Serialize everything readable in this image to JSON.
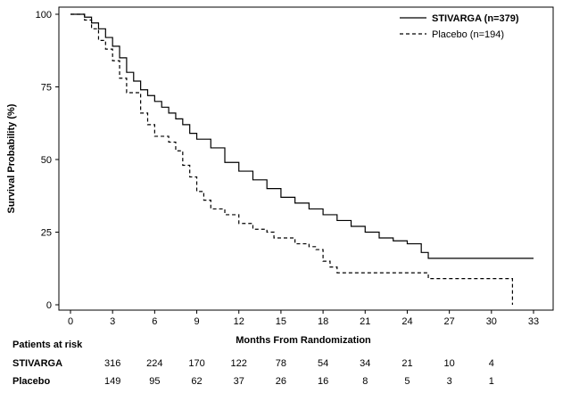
{
  "chart_data": {
    "type": "line",
    "title": "",
    "xlabel": "Months From Randomization",
    "ylabel": "Survival Probability (%)",
    "xlim": [
      0,
      33
    ],
    "ylim": [
      0,
      100
    ],
    "x_ticks": [
      0,
      3,
      6,
      9,
      12,
      15,
      18,
      21,
      24,
      27,
      30,
      33
    ],
    "y_ticks": [
      0,
      25,
      50,
      75,
      100
    ],
    "grid": false,
    "legend_position": "top-right",
    "series": [
      {
        "name": "STIVARGA (n=379)",
        "style": "solid",
        "color": "#000000",
        "points": [
          [
            0,
            100
          ],
          [
            0.5,
            100
          ],
          [
            1,
            99
          ],
          [
            1.5,
            97
          ],
          [
            2,
            95
          ],
          [
            2.5,
            92
          ],
          [
            3,
            89
          ],
          [
            3.5,
            85
          ],
          [
            4,
            80
          ],
          [
            4.5,
            77
          ],
          [
            5,
            74
          ],
          [
            5.5,
            72
          ],
          [
            6,
            70
          ],
          [
            6.5,
            68
          ],
          [
            7,
            66
          ],
          [
            7.5,
            64
          ],
          [
            8,
            62
          ],
          [
            8.5,
            59
          ],
          [
            9,
            57
          ],
          [
            10,
            54
          ],
          [
            11,
            49
          ],
          [
            12,
            46
          ],
          [
            13,
            43
          ],
          [
            14,
            40
          ],
          [
            15,
            37
          ],
          [
            16,
            35
          ],
          [
            17,
            33
          ],
          [
            18,
            31
          ],
          [
            19,
            29
          ],
          [
            20,
            27
          ],
          [
            21,
            25
          ],
          [
            22,
            23
          ],
          [
            23,
            22
          ],
          [
            24,
            21
          ],
          [
            25,
            18
          ],
          [
            25.5,
            16
          ],
          [
            33,
            16
          ]
        ]
      },
      {
        "name": "Placebo (n=194)",
        "style": "dashed",
        "color": "#000000",
        "points": [
          [
            0,
            100
          ],
          [
            0.5,
            100
          ],
          [
            1,
            98
          ],
          [
            1.5,
            95
          ],
          [
            2,
            91
          ],
          [
            2.5,
            88
          ],
          [
            3,
            84
          ],
          [
            3.5,
            78
          ],
          [
            4,
            73
          ],
          [
            5,
            66
          ],
          [
            5.5,
            62
          ],
          [
            6,
            58
          ],
          [
            7,
            56
          ],
          [
            7.5,
            53
          ],
          [
            8,
            48
          ],
          [
            8.5,
            44
          ],
          [
            9,
            39
          ],
          [
            9.5,
            36
          ],
          [
            10,
            33
          ],
          [
            11,
            31
          ],
          [
            12,
            28
          ],
          [
            13,
            26
          ],
          [
            14,
            25
          ],
          [
            14.5,
            23
          ],
          [
            16,
            21
          ],
          [
            17,
            20
          ],
          [
            17.5,
            19
          ],
          [
            18,
            15
          ],
          [
            18.5,
            13
          ],
          [
            19,
            11
          ],
          [
            25.5,
            9
          ],
          [
            31.5,
            9
          ],
          [
            31.5,
            0
          ]
        ]
      }
    ],
    "risk_table": {
      "header": "Patients at risk",
      "rows": [
        {
          "label": "STIVARGA",
          "values": [
            "316",
            "224",
            "170",
            "122",
            "78",
            "54",
            "34",
            "21",
            "10",
            "4"
          ]
        },
        {
          "label": "Placebo",
          "values": [
            "149",
            "95",
            "62",
            "37",
            "26",
            "16",
            "8",
            "5",
            "3",
            "1"
          ]
        }
      ]
    }
  }
}
